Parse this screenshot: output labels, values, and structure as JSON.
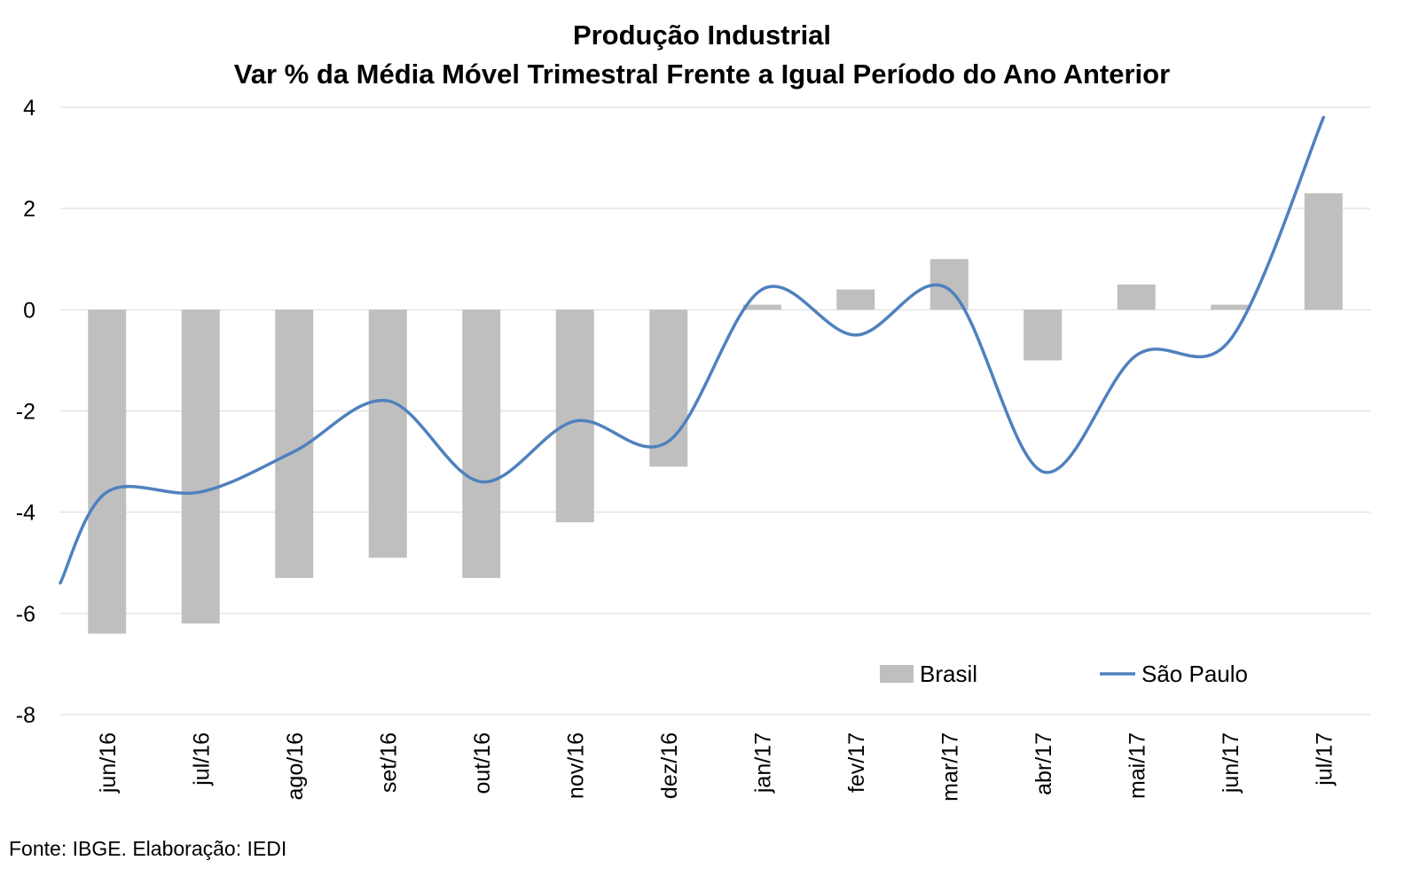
{
  "chart_data": {
    "type": "bar+line",
    "title": "Produção Industrial",
    "subtitle": "Var % da Média Móvel Trimestral Frente a Igual Período do Ano Anterior",
    "categories": [
      "jun/16",
      "jul/16",
      "ago/16",
      "set/16",
      "out/16",
      "nov/16",
      "dez/16",
      "jan/17",
      "fev/17",
      "mar/17",
      "abr/17",
      "mai/17",
      "jun/17",
      "jul/17"
    ],
    "series": [
      {
        "name": "Brasil",
        "type": "bar",
        "color": "#bfbfbf",
        "values": [
          -6.4,
          -6.2,
          -5.3,
          -4.9,
          -5.3,
          -4.2,
          -3.1,
          0.1,
          0.4,
          1.0,
          -1.0,
          0.5,
          0.1,
          2.3
        ]
      },
      {
        "name": "São Paulo",
        "type": "line",
        "color": "#4f81bd",
        "values": [
          -3.6,
          -3.6,
          -2.8,
          -1.8,
          -3.4,
          -2.2,
          -2.6,
          0.4,
          -0.5,
          0.4,
          -3.2,
          -0.9,
          -0.6,
          3.8
        ]
      }
    ],
    "line_start_value": -5.4,
    "yticks": [
      4,
      2,
      0,
      -2,
      -4,
      -6,
      -8
    ],
    "ylim": [
      -8,
      4
    ],
    "grid": true,
    "legend_position": "bottom-right"
  },
  "source_note": "Fonte: IBGE. Elaboração: IEDI"
}
